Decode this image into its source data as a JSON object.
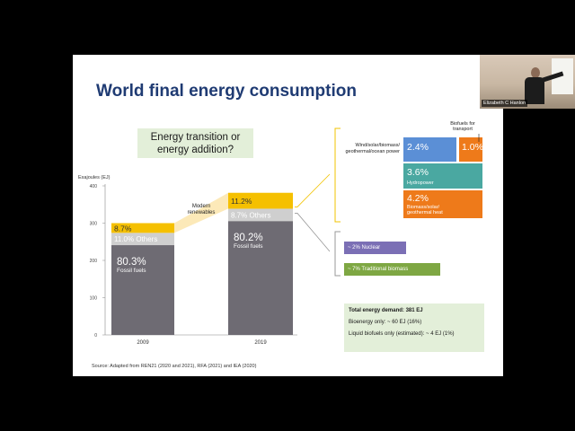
{
  "slide": {
    "title": "World final energy consumption",
    "question_line1": "Energy transition or",
    "question_line2": "energy addition?",
    "source": "Source: Adapted from REN21 (2020 and 2021), RFA (2021) and IEA (2020)"
  },
  "chart_data": {
    "type": "bar",
    "stacked": true,
    "ylabel": "Exajoules (EJ)",
    "ylim": [
      0,
      400
    ],
    "yticks": [
      "0",
      "100",
      "200",
      "300",
      "400"
    ],
    "categories": [
      "2009",
      "2019"
    ],
    "series": [
      {
        "name": "Fossil fuels",
        "values": [
          80.3,
          80.2
        ],
        "value_labels": [
          "80.3",
          "80.2"
        ],
        "color": "#6e6b73"
      },
      {
        "name": "Others",
        "values": [
          11.0,
          8.7
        ],
        "value_labels": [
          "11.0",
          "8.7"
        ],
        "color": "#cfcfcf"
      },
      {
        "name": "Modern renewables",
        "values": [
          8.7,
          11.2
        ],
        "value_labels": [
          "8.7",
          "11.2"
        ],
        "color": "#f5c000"
      }
    ],
    "bar_tops_ej": [
      300,
      381
    ],
    "annotation": "Modern\nrenewables"
  },
  "breakdown": {
    "wind": {
      "value": "2.4",
      "label": "Wind/solar/biomass/\ngeothermal/ocean power",
      "color": "#5b8fd6"
    },
    "biofuels": {
      "value": "1.0",
      "label": "Biofuels for\ntransport",
      "color": "#ee7a1a"
    },
    "hydro": {
      "value": "3.6",
      "label": "Hydropower",
      "color": "#4aa8a1"
    },
    "heat": {
      "value": "4.2",
      "label": "Biomass/solar/\ngeothermal heat",
      "color": "#ee7a1a"
    }
  },
  "others": {
    "nuclear": "~ 2%   Nuclear",
    "traditional": "~ 7%   Traditional biomass"
  },
  "demand": {
    "total": "Total energy demand: 381 EJ",
    "bioenergy": "Bioenergy only: ~ 60 EJ  (16%)",
    "liquid": "Liquid biofuels only (estimated): ~ 4 EJ  (1%)"
  },
  "webcam": {
    "name": "Elizabeth C Hanlon"
  },
  "units": {
    "percent": "%"
  },
  "colors": {
    "bracket": "#f2c300",
    "title": "#1f3b73"
  }
}
